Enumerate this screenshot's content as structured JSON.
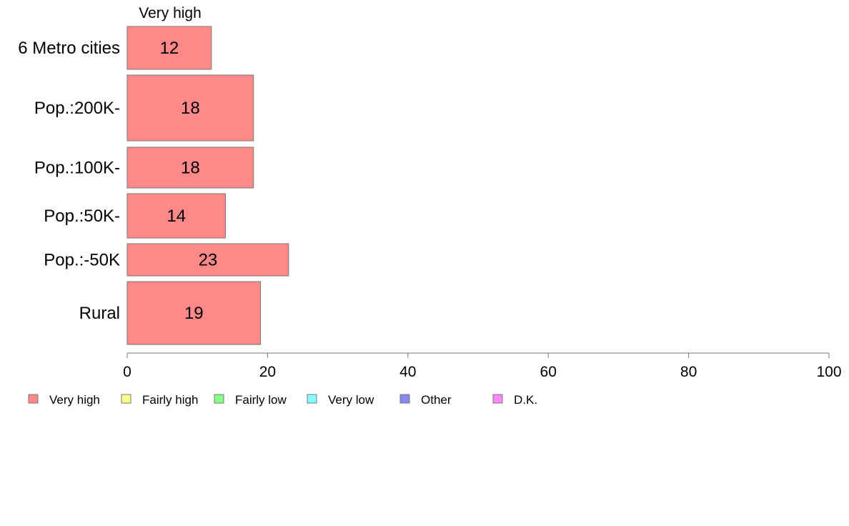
{
  "chart_data": {
    "type": "bar",
    "orientation": "horizontal",
    "stacked": true,
    "categories": [
      "6 Metro cities",
      "Pop.:200K-",
      "Pop.:100K-",
      "Pop.:50K-",
      "Pop.:-50K",
      "Rural"
    ],
    "series": [
      {
        "name": "Very high",
        "values": [
          12,
          18,
          18,
          14,
          23,
          19
        ],
        "color": "#ff8888"
      }
    ],
    "column_label": "Very high",
    "xlim": [
      0,
      100
    ],
    "xticks": [
      "0",
      "20",
      "40",
      "60",
      "80",
      "100"
    ],
    "grid": false,
    "legend_position": "bottom-left",
    "legend": [
      {
        "label": "Very high",
        "color": "#ff8888"
      },
      {
        "label": "Fairly high",
        "color": "#ffff88"
      },
      {
        "label": "Fairly low",
        "color": "#88ff88"
      },
      {
        "label": "Very low",
        "color": "#88ffff"
      },
      {
        "label": "Other",
        "color": "#8888ee"
      },
      {
        "label": "D.K.",
        "color": "#ff88ff"
      }
    ]
  }
}
